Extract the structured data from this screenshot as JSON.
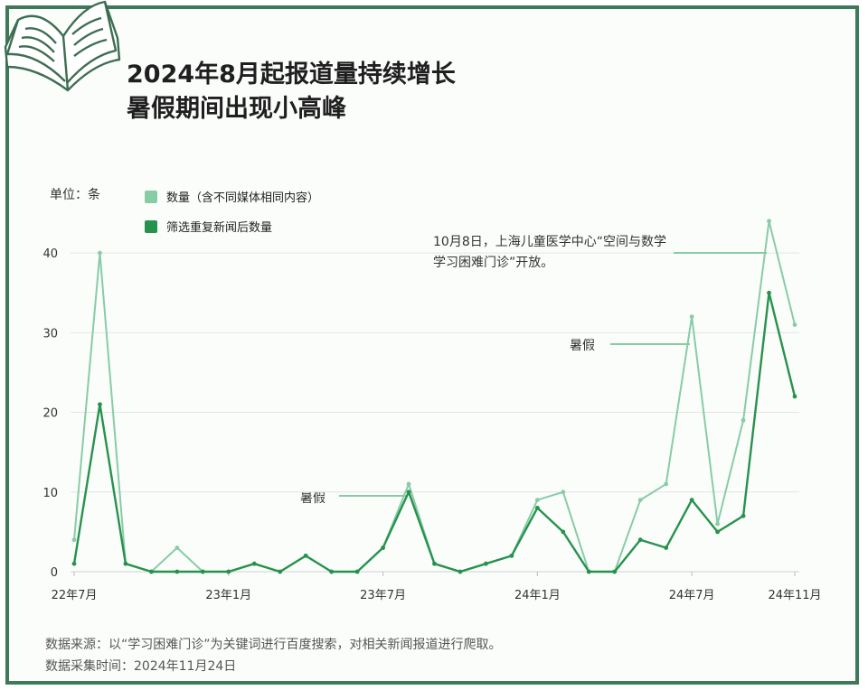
{
  "title_line1": "2024年8月起报道量持续增长",
  "title_line2": "暑假期间出现小高峰",
  "unit_label": "单位：条",
  "legend": [
    {
      "name": "数量（含不同媒体相同内容）",
      "color": "#88cca6"
    },
    {
      "name": "筛选重复新闻后数量",
      "color": "#27924d"
    }
  ],
  "annotations": {
    "oct": "10月8日，上海儿童医学中心“空间与数学学习困难门诊”开放。",
    "summer1": "暑假",
    "summer2": "暑假"
  },
  "source_line1": "数据来源：以“学习困难门诊”为关键词进行百度搜索，对相关新闻报道进行爬取。",
  "source_line2": "数据采集时间：2024年11月24日",
  "chart_data": {
    "type": "line",
    "x": [
      "2022-07",
      "2022-08",
      "2022-09",
      "2022-10",
      "2022-11",
      "2022-12",
      "2023-01",
      "2023-02",
      "2023-03",
      "2023-04",
      "2023-05",
      "2023-06",
      "2023-07",
      "2023-08",
      "2023-09",
      "2023-10",
      "2023-11",
      "2023-12",
      "2024-01",
      "2024-02",
      "2024-03",
      "2024-04",
      "2024-05",
      "2024-06",
      "2024-07",
      "2024-08",
      "2024-09",
      "2024-10",
      "2024-11"
    ],
    "tick_labels": [
      {
        "label": "22年7月",
        "x": "2022-07"
      },
      {
        "label": "23年1月",
        "x": "2023-01"
      },
      {
        "label": "23年7月",
        "x": "2023-07"
      },
      {
        "label": "24年1月",
        "x": "2024-01"
      },
      {
        "label": "24年7月",
        "x": "2024-07"
      },
      {
        "label": "24年11月",
        "x": "2024-11"
      }
    ],
    "y_ticks": [
      0,
      10,
      20,
      30,
      40
    ],
    "ylim": [
      0,
      45
    ],
    "grid": true,
    "series": [
      {
        "name": "数量（含不同媒体相同内容）",
        "color": "#88cca6",
        "values": [
          4,
          40,
          1,
          0,
          3,
          0,
          0,
          1,
          0,
          2,
          0,
          0,
          3,
          11,
          1,
          0,
          1,
          2,
          9,
          10,
          0,
          0,
          9,
          11,
          32,
          6,
          19,
          44,
          31
        ]
      },
      {
        "name": "筛选重复新闻后数量",
        "color": "#27924d",
        "values": [
          1,
          21,
          1,
          0,
          0,
          0,
          0,
          1,
          0,
          2,
          0,
          0,
          3,
          10,
          1,
          0,
          1,
          2,
          8,
          5,
          0,
          0,
          4,
          3,
          9,
          5,
          7,
          35,
          22
        ]
      }
    ]
  }
}
